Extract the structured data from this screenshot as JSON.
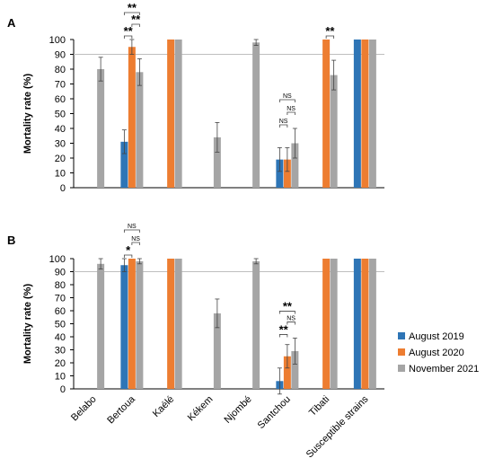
{
  "chart_data": [
    {
      "panel": "A",
      "type": "bar",
      "ylabel": "Mortality rate (%)",
      "ylim": [
        0,
        100
      ],
      "yticks": [
        0,
        10,
        20,
        30,
        40,
        50,
        60,
        70,
        80,
        90,
        100
      ],
      "reference_line": 90,
      "categories": [
        "Belabo",
        "Bertoua",
        "Kaélé",
        "Kékem",
        "Njombé",
        "Santchou",
        "Tibati",
        "Susceptible strains"
      ],
      "series": [
        {
          "name": "August 2019",
          "color": "#2E75B6",
          "values": [
            null,
            31,
            null,
            null,
            null,
            19,
            null,
            100
          ],
          "errors": [
            null,
            8,
            null,
            null,
            null,
            8,
            null,
            0
          ]
        },
        {
          "name": "August 2020",
          "color": "#ED7D31",
          "values": [
            null,
            95,
            100,
            null,
            null,
            19,
            100,
            100
          ],
          "errors": [
            null,
            5,
            0,
            null,
            null,
            8,
            0,
            0
          ]
        },
        {
          "name": "November 2021",
          "color": "#A5A5A5",
          "values": [
            80,
            78,
            100,
            34,
            98,
            30,
            76,
            100
          ],
          "errors": [
            8,
            9,
            0,
            10,
            2,
            10,
            10,
            0
          ]
        }
      ],
      "significance": [
        {
          "category": "Bertoua",
          "from": 0,
          "to": 1,
          "label": "**"
        },
        {
          "category": "Bertoua",
          "from": 1,
          "to": 2,
          "label": "**"
        },
        {
          "category": "Bertoua",
          "from": 0,
          "to": 2,
          "label": "**"
        },
        {
          "category": "Santchou",
          "from": 0,
          "to": 1,
          "label": "NS"
        },
        {
          "category": "Santchou",
          "from": 1,
          "to": 2,
          "label": "NS"
        },
        {
          "category": "Santchou",
          "from": 0,
          "to": 2,
          "label": "NS"
        },
        {
          "category": "Tibati",
          "from": 1,
          "to": 2,
          "label": "**"
        }
      ]
    },
    {
      "panel": "B",
      "type": "bar",
      "ylabel": "Mortality rate (%)",
      "ylim": [
        0,
        100
      ],
      "yticks": [
        0,
        10,
        20,
        30,
        40,
        50,
        60,
        70,
        80,
        90,
        100
      ],
      "reference_line": 90,
      "categories": [
        "Belabo",
        "Bertoua",
        "Kaélé",
        "Kékem",
        "Njombé",
        "Santchou",
        "Tibati",
        "Susceptible strains"
      ],
      "series": [
        {
          "name": "August 2019",
          "color": "#2E75B6",
          "values": [
            null,
            95,
            null,
            null,
            null,
            6,
            null,
            100
          ],
          "errors": [
            null,
            5,
            null,
            null,
            null,
            10,
            null,
            0
          ]
        },
        {
          "name": "August 2020",
          "color": "#ED7D31",
          "values": [
            null,
            100,
            100,
            null,
            null,
            25,
            100,
            100
          ],
          "errors": [
            null,
            0,
            0,
            null,
            null,
            9,
            0,
            0
          ]
        },
        {
          "name": "November 2021",
          "color": "#A5A5A5",
          "values": [
            96,
            98,
            100,
            58,
            98,
            29,
            100,
            100
          ],
          "errors": [
            4,
            2,
            0,
            11,
            2,
            10,
            0,
            0
          ]
        }
      ],
      "significance": [
        {
          "category": "Bertoua",
          "from": 0,
          "to": 1,
          "label": "*"
        },
        {
          "category": "Bertoua",
          "from": 1,
          "to": 2,
          "label": "NS"
        },
        {
          "category": "Bertoua",
          "from": 0,
          "to": 2,
          "label": "NS"
        },
        {
          "category": "Santchou",
          "from": 0,
          "to": 1,
          "label": "**"
        },
        {
          "category": "Santchou",
          "from": 1,
          "to": 2,
          "label": "NS"
        },
        {
          "category": "Santchou",
          "from": 0,
          "to": 2,
          "label": "**"
        }
      ]
    }
  ],
  "legend": {
    "placement": "right",
    "items": [
      {
        "label": "August 2019",
        "color": "#2E75B6"
      },
      {
        "label": "August 2020",
        "color": "#ED7D31"
      },
      {
        "label": "November 2021",
        "color": "#A5A5A5"
      }
    ]
  }
}
